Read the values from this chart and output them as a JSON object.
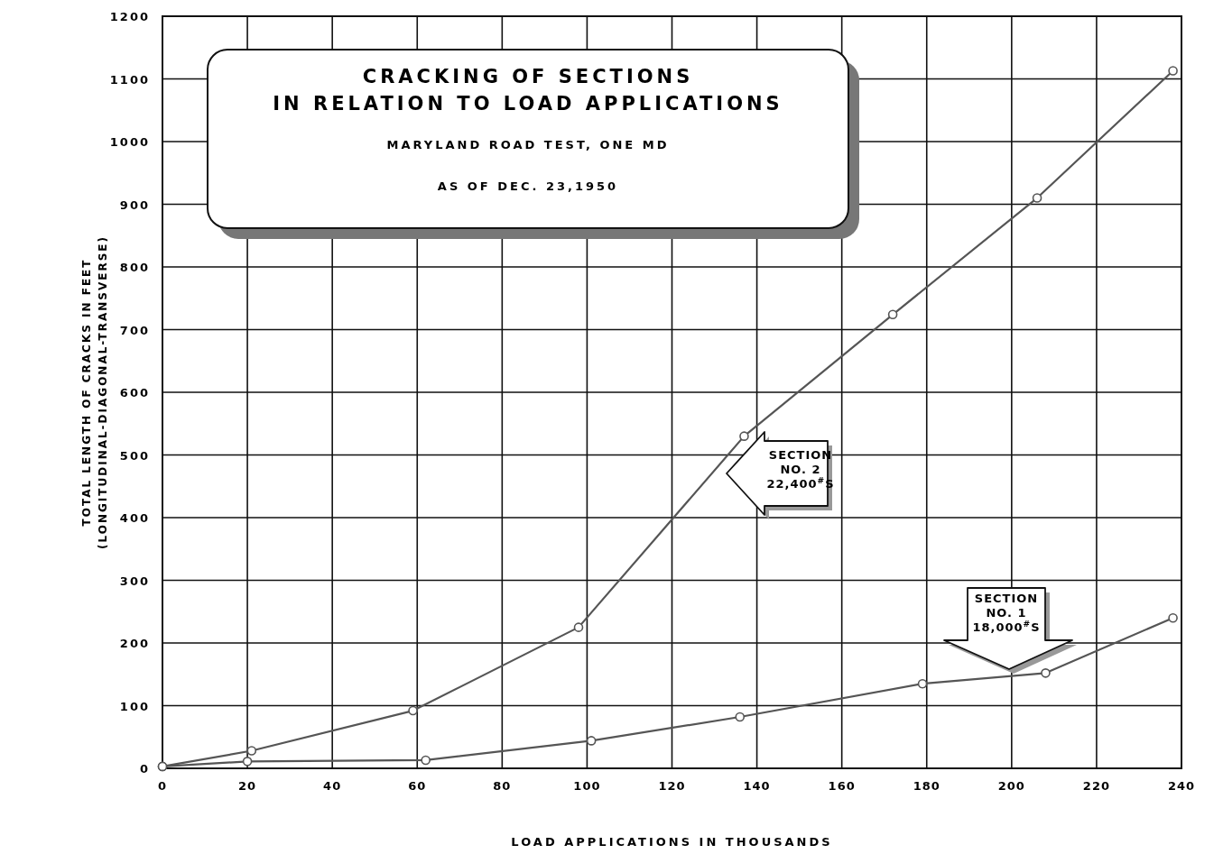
{
  "chart_data": {
    "type": "line",
    "title": "CRACKING OF SECTIONS\nIN RELATION TO LOAD APPLICATIONS",
    "subtitle": "MARYLAND ROAD TEST, ONE MD\nAS OF DEC. 23,1950",
    "xlabel": "LOAD APPLICATIONS IN THOUSANDS",
    "ylabel": "TOTAL LENGTH OF CRACKS IN FEET\n(LONGITUDINAL-DIAGONAL-TRANSVERSE)",
    "xlim": [
      0,
      240
    ],
    "xticks": [
      0,
      20,
      40,
      60,
      80,
      100,
      120,
      140,
      160,
      180,
      200,
      220,
      240
    ],
    "ylim": [
      0,
      1200
    ],
    "yticks": [
      0,
      100,
      200,
      300,
      400,
      500,
      600,
      700,
      800,
      900,
      1000,
      1100,
      1200
    ],
    "grid": true,
    "marker": "circle",
    "line_style": "solid",
    "series": [
      {
        "color": "#555555",
        "x": [
          0,
          21,
          59,
          98,
          137,
          172,
          206,
          238
        ],
        "values": [
          3,
          28,
          92,
          225,
          530,
          724,
          910,
          1113
        ]
      },
      {
        "color": "#555555",
        "x": [
          0,
          20,
          62,
          101,
          136,
          179,
          208,
          238
        ],
        "values": [
          3,
          11,
          13,
          44,
          82,
          135,
          152,
          240
        ]
      }
    ],
    "annotations": [
      "SECTION\nNO. 2\n22,400$^{#}$S",
      "SECTION\nNO. 1\n18,000$^{#}$S"
    ]
  }
}
